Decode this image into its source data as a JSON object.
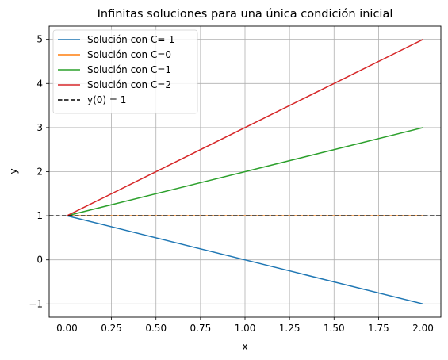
{
  "chart_data": {
    "type": "line",
    "title": "Infinitas soluciones para una única condición inicial",
    "xlabel": "x",
    "ylabel": "y",
    "xlim": [
      -0.1,
      2.1
    ],
    "ylim": [
      -1.3,
      5.3
    ],
    "xticks": [
      0.0,
      0.25,
      0.5,
      0.75,
      1.0,
      1.25,
      1.5,
      1.75,
      2.0
    ],
    "xtick_labels": [
      "0.00",
      "0.25",
      "0.50",
      "0.75",
      "1.00",
      "1.25",
      "1.50",
      "1.75",
      "2.00"
    ],
    "yticks": [
      -1,
      0,
      1,
      2,
      3,
      4,
      5
    ],
    "ytick_labels": [
      "−1",
      "0",
      "1",
      "2",
      "3",
      "4",
      "5"
    ],
    "grid": true,
    "legend_position": "top-left",
    "series": [
      {
        "name": "Solución con C=-1",
        "color": "#1f77b4",
        "style": "solid",
        "x": [
          0,
          2
        ],
        "y": [
          1,
          -1
        ]
      },
      {
        "name": "Solución con C=0",
        "color": "#ff7f0e",
        "style": "solid",
        "x": [
          0,
          2
        ],
        "y": [
          1,
          1
        ]
      },
      {
        "name": "Solución con C=1",
        "color": "#2ca02c",
        "style": "solid",
        "x": [
          0,
          2
        ],
        "y": [
          1,
          3
        ]
      },
      {
        "name": "Solución con C=2",
        "color": "#d62728",
        "style": "solid",
        "x": [
          0,
          2
        ],
        "y": [
          1,
          5
        ]
      }
    ],
    "hlines": [
      {
        "name": "y(0) = 1",
        "color": "#000000",
        "style": "dashed",
        "y": 1
      }
    ]
  }
}
